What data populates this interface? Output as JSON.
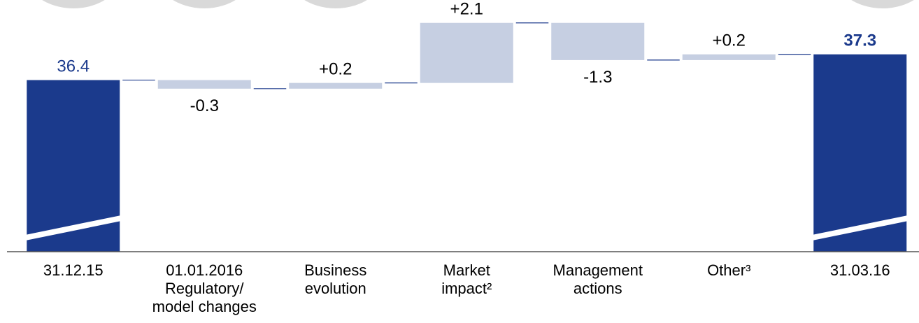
{
  "chart_data": {
    "type": "waterfall",
    "categories": [
      "31.12.15",
      "01.01.2016\nRegulatory/\nmodel changes",
      "Business\nevolution",
      "Market\nimpact²",
      "Management\nactions",
      "Other³",
      "31.03.16"
    ],
    "values": [
      36.4,
      -0.3,
      0.2,
      2.1,
      -1.3,
      0.2,
      37.3
    ],
    "value_labels": [
      "36.4",
      "-0.3",
      "+0.2",
      "+2.1",
      "-1.3",
      "+0.2",
      "37.3"
    ],
    "colors": [
      "#1b3a8c",
      "#c6cfe2",
      "#c6cfe2",
      "#c6cfe2",
      "#c6cfe2",
      "#c6cfe2",
      "#1b3a8c"
    ],
    "ylim": [
      30.4,
      39.2
    ]
  }
}
